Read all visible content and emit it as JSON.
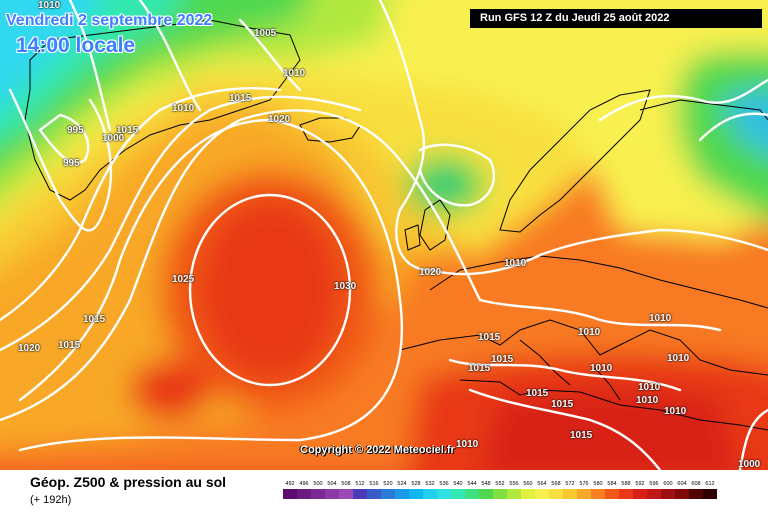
{
  "header": {
    "date": "Vendredi 2 septembre 2022",
    "local_time": "14:00 locale",
    "run_info": "Run GFS 12 Z du Jeudi 25 août 2022"
  },
  "copyright": "Copyright © 2022 Meteociel.fr",
  "footer": {
    "title": "Géop. Z500 & pression au sol",
    "forecast_hours": "(+ 192h)"
  },
  "isobar_labels": [
    "1010",
    "1005",
    "1010",
    "1015",
    "1010",
    "1015",
    "1000",
    "995",
    "995",
    "1020",
    "1010",
    "1025",
    "1030",
    "1015",
    "1020",
    "1015",
    "1020",
    "1010",
    "1015",
    "1015",
    "1015",
    "1010",
    "1010",
    "1010",
    "1010",
    "1010",
    "1015",
    "1015",
    "1015",
    "1010",
    "1010",
    "1000"
  ],
  "legend": {
    "values": [
      "492",
      "496",
      "500",
      "504",
      "508",
      "512",
      "516",
      "520",
      "524",
      "528",
      "532",
      "536",
      "540",
      "544",
      "548",
      "552",
      "556",
      "560",
      "564",
      "568",
      "572",
      "576",
      "580",
      "584",
      "588",
      "592",
      "596",
      "600",
      "604",
      "608",
      "612"
    ],
    "colors": [
      "#5a0d6d",
      "#6b1a80",
      "#7a2a96",
      "#8a3aa8",
      "#9a4ab8",
      "#4a3ab8",
      "#3a5ac8",
      "#2a7ad8",
      "#1a9ae8",
      "#10b8f0",
      "#20d0f0",
      "#30e0e0",
      "#30e8b0",
      "#40e080",
      "#50d850",
      "#80e040",
      "#b0e840",
      "#e0f040",
      "#f8f050",
      "#f8e040",
      "#f8c830",
      "#f8a828",
      "#f88020",
      "#f05818",
      "#e83818",
      "#d82018",
      "#c01818",
      "#a01010",
      "#800808",
      "#500404",
      "#300000"
    ]
  }
}
